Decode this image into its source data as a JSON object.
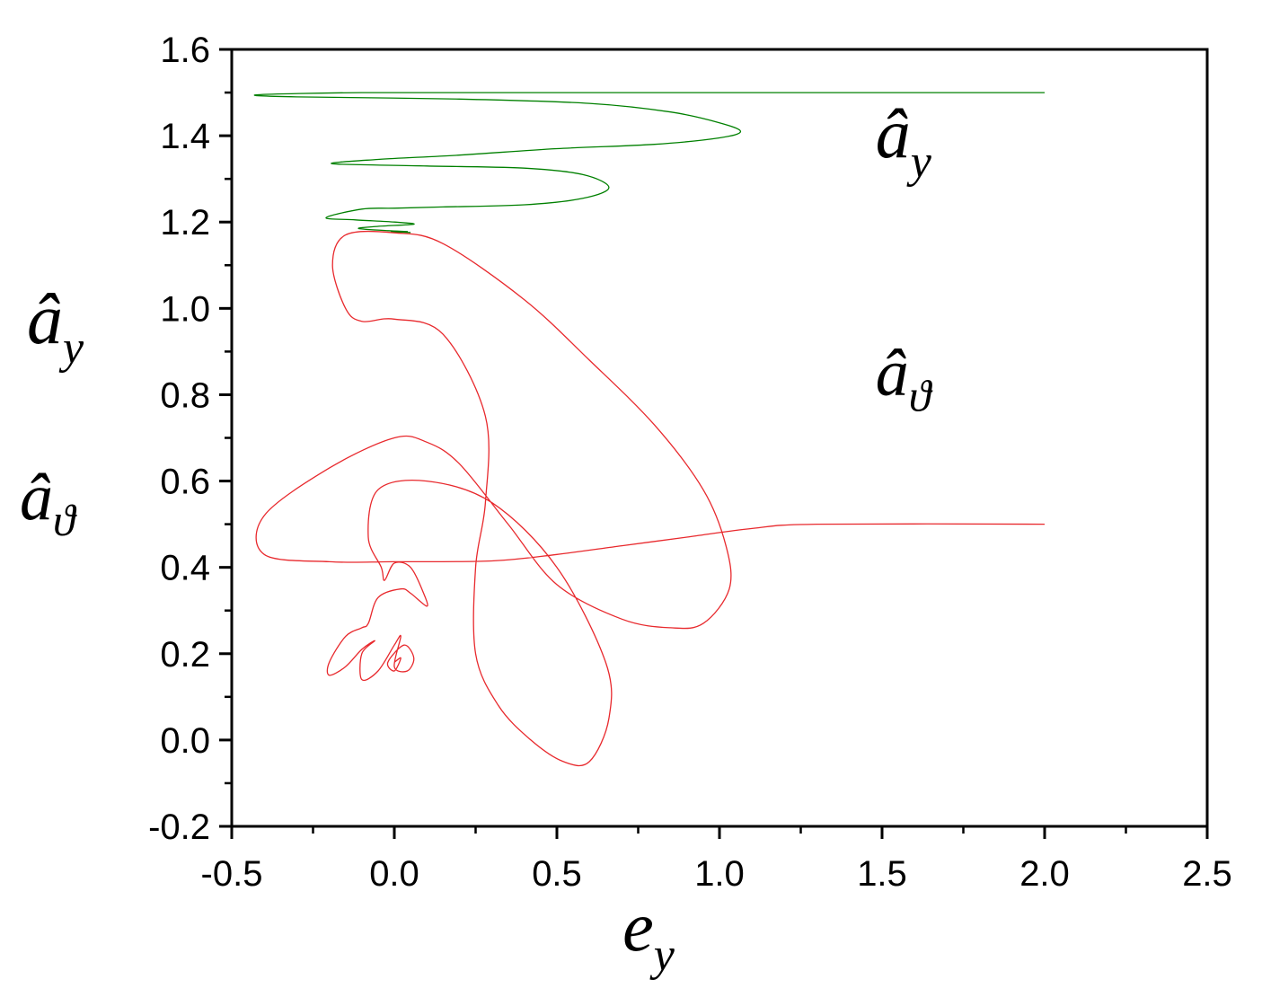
{
  "chart_data": {
    "type": "line",
    "xlabel": "e",
    "xlabel_sub": "y",
    "ylabel_lines": [
      {
        "main": "â",
        "sub": "y"
      },
      {
        "main": "â",
        "sub": "ϑ"
      }
    ],
    "xlim": [
      -0.5,
      2.5
    ],
    "ylim": [
      -0.2,
      1.6
    ],
    "xticks": [
      -0.5,
      0.0,
      0.5,
      1.0,
      1.5,
      2.0,
      2.5
    ],
    "xtick_labels": [
      "-0.5",
      "0.0",
      "0.5",
      "1.0",
      "1.5",
      "2.0",
      "2.5"
    ],
    "yticks": [
      -0.2,
      0.0,
      0.2,
      0.4,
      0.6,
      0.8,
      1.0,
      1.2,
      1.4,
      1.6
    ],
    "ytick_labels": [
      "-0.2",
      "0.0",
      "0.2",
      "0.4",
      "0.6",
      "0.8",
      "1.0",
      "1.2",
      "1.4",
      "1.6"
    ],
    "grid": false,
    "series": [
      {
        "name": "â_y",
        "label_main": "â",
        "label_sub": "y",
        "label_at": [
          1.48,
          1.35
        ],
        "color": "#008000",
        "points": [
          [
            2.0,
            1.5
          ],
          [
            1.4,
            1.5
          ],
          [
            0.8,
            1.5
          ],
          [
            0.3,
            1.5
          ],
          [
            -0.1,
            1.5
          ],
          [
            -0.42,
            1.495
          ],
          [
            -0.3,
            1.49
          ],
          [
            0.2,
            1.485
          ],
          [
            0.6,
            1.475
          ],
          [
            0.85,
            1.455
          ],
          [
            1.0,
            1.43
          ],
          [
            1.065,
            1.41
          ],
          [
            1.0,
            1.395
          ],
          [
            0.8,
            1.38
          ],
          [
            0.5,
            1.37
          ],
          [
            0.2,
            1.355
          ],
          [
            -0.05,
            1.345
          ],
          [
            -0.19,
            1.335
          ],
          [
            0.1,
            1.33
          ],
          [
            0.4,
            1.325
          ],
          [
            0.58,
            1.31
          ],
          [
            0.66,
            1.28
          ],
          [
            0.58,
            1.255
          ],
          [
            0.4,
            1.24
          ],
          [
            0.15,
            1.235
          ],
          [
            0.0,
            1.232
          ],
          [
            -0.1,
            1.23
          ],
          [
            -0.21,
            1.21
          ],
          [
            -0.12,
            1.205
          ],
          [
            0.0,
            1.2
          ],
          [
            0.06,
            1.195
          ],
          [
            -0.05,
            1.19
          ],
          [
            -0.11,
            1.185
          ],
          [
            -0.02,
            1.18
          ],
          [
            0.04,
            1.178
          ],
          [
            -0.01,
            1.177
          ],
          [
            0.05,
            1.176
          ]
        ]
      },
      {
        "name": "â_ϑ",
        "label_main": "â",
        "label_sub": "ϑ",
        "label_at": [
          1.48,
          0.8
        ],
        "color": "#e8292d",
        "points": [
          [
            2.0,
            0.5
          ],
          [
            1.3,
            0.5
          ],
          [
            1.1,
            0.49
          ],
          [
            0.9,
            0.47
          ],
          [
            0.7,
            0.45
          ],
          [
            0.5,
            0.43
          ],
          [
            0.3,
            0.415
          ],
          [
            0.0,
            0.413
          ],
          [
            -0.2,
            0.413
          ],
          [
            -0.4,
            0.43
          ],
          [
            -0.4,
            0.52
          ],
          [
            -0.2,
            0.63
          ],
          [
            0.0,
            0.7
          ],
          [
            0.1,
            0.69
          ],
          [
            0.2,
            0.64
          ],
          [
            0.35,
            0.5
          ],
          [
            0.5,
            0.36
          ],
          [
            0.7,
            0.28
          ],
          [
            0.85,
            0.26
          ],
          [
            0.95,
            0.27
          ],
          [
            1.03,
            0.35
          ],
          [
            1.02,
            0.45
          ],
          [
            0.95,
            0.58
          ],
          [
            0.8,
            0.73
          ],
          [
            0.6,
            0.88
          ],
          [
            0.4,
            1.02
          ],
          [
            0.15,
            1.15
          ],
          [
            0.0,
            1.175
          ],
          [
            -0.15,
            1.17
          ],
          [
            -0.19,
            1.1
          ],
          [
            -0.15,
            1.0
          ],
          [
            -0.1,
            0.97
          ],
          [
            0.0,
            0.975
          ],
          [
            0.15,
            0.94
          ],
          [
            0.28,
            0.75
          ],
          [
            0.28,
            0.55
          ],
          [
            0.25,
            0.4
          ],
          [
            0.25,
            0.2
          ],
          [
            0.32,
            0.08
          ],
          [
            0.42,
            0.0
          ],
          [
            0.52,
            -0.05
          ],
          [
            0.6,
            -0.05
          ],
          [
            0.66,
            0.05
          ],
          [
            0.65,
            0.18
          ],
          [
            0.5,
            0.4
          ],
          [
            0.3,
            0.55
          ],
          [
            0.1,
            0.6
          ],
          [
            -0.05,
            0.58
          ],
          [
            -0.08,
            0.47
          ],
          [
            -0.04,
            0.4
          ],
          [
            -0.03,
            0.37
          ],
          [
            0.0,
            0.41
          ],
          [
            0.05,
            0.4
          ],
          [
            0.09,
            0.34
          ],
          [
            0.1,
            0.31
          ],
          [
            0.05,
            0.34
          ],
          [
            0.02,
            0.35
          ],
          [
            -0.05,
            0.33
          ],
          [
            -0.08,
            0.27
          ],
          [
            -0.1,
            0.26
          ],
          [
            -0.15,
            0.24
          ],
          [
            -0.2,
            0.18
          ],
          [
            -0.2,
            0.15
          ],
          [
            -0.15,
            0.17
          ],
          [
            -0.1,
            0.21
          ],
          [
            -0.06,
            0.23
          ],
          [
            -0.1,
            0.2
          ],
          [
            -0.1,
            0.14
          ],
          [
            -0.05,
            0.16
          ],
          [
            0.0,
            0.22
          ],
          [
            0.02,
            0.24
          ],
          [
            0.0,
            0.17
          ],
          [
            0.04,
            0.16
          ],
          [
            0.06,
            0.19
          ],
          [
            0.03,
            0.22
          ],
          [
            -0.02,
            0.18
          ],
          [
            0.0,
            0.16
          ],
          [
            0.02,
            0.19
          ],
          [
            0.0,
            0.18
          ]
        ]
      }
    ]
  }
}
